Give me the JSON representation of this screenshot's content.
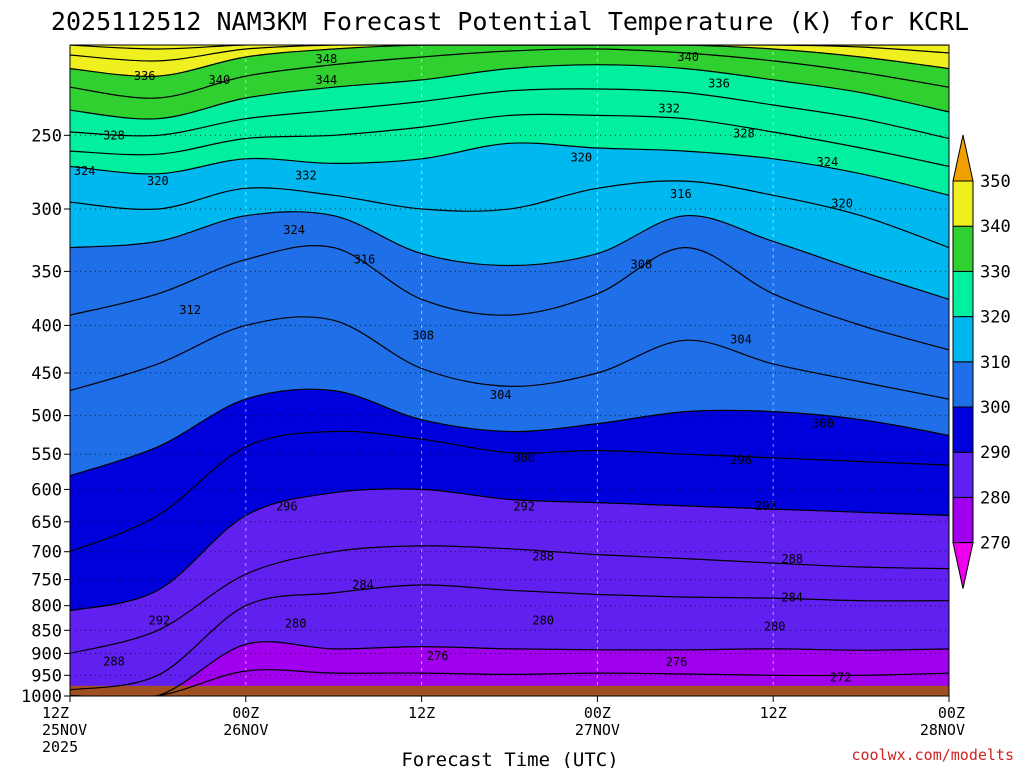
{
  "title": "2025112512 NAM3KM Forecast Potential Temperature (K) for KCRL",
  "credit": "coolwx.com/modelts",
  "chart_data": {
    "type": "heatmap",
    "title": "2025112512 NAM3KM Forecast Potential Temperature (K) for KCRL",
    "xlabel": "Forecast Time (UTC)",
    "ylabel": "",
    "x_range_hours": [
      0,
      60
    ],
    "y_range_hpa": [
      200,
      1000
    ],
    "y_scale": "log-pressure",
    "grid": true,
    "y_ticks": [
      250,
      300,
      350,
      400,
      450,
      500,
      550,
      600,
      650,
      700,
      750,
      800,
      850,
      900,
      950,
      1000
    ],
    "x_ticks": [
      {
        "hour": 0,
        "label": "12Z",
        "date": "25NOV",
        "year": "2025"
      },
      {
        "hour": 12,
        "label": "00Z",
        "date": "26NOV",
        "year": ""
      },
      {
        "hour": 24,
        "label": "12Z",
        "date": "",
        "year": ""
      },
      {
        "hour": 36,
        "label": "00Z",
        "date": "27NOV",
        "year": ""
      },
      {
        "hour": 48,
        "label": "12Z",
        "date": "",
        "year": ""
      },
      {
        "hour": 60,
        "label": "00Z",
        "date": "28NOV",
        "year": ""
      }
    ],
    "colorbar": {
      "levels": [
        270,
        280,
        290,
        300,
        310,
        320,
        330,
        340,
        350
      ],
      "colors": [
        "#ee00ee",
        "#a000ee",
        "#6020f0",
        "#0000dd",
        "#1e6fe8",
        "#00b8f0",
        "#00f0a0",
        "#30d030",
        "#f0f020",
        "#f0a000"
      ]
    },
    "surface_hpa": 975,
    "hours": [
      0,
      6,
      12,
      18,
      24,
      30,
      36,
      42,
      48,
      54,
      60
    ],
    "isentropes": [
      {
        "theta": 276,
        "p": [
          999,
          999,
          940,
          945,
          945,
          948,
          945,
          947,
          950,
          950,
          945
        ]
      },
      {
        "theta": 280,
        "p": [
          999,
          999,
          880,
          890,
          885,
          890,
          892,
          892,
          890,
          893,
          890
        ]
      },
      {
        "theta": 284,
        "p": [
          985,
          950,
          800,
          775,
          760,
          770,
          778,
          783,
          785,
          790,
          790
        ]
      },
      {
        "theta": 288,
        "p": [
          900,
          850,
          740,
          700,
          690,
          695,
          705,
          712,
          720,
          727,
          730
        ]
      },
      {
        "theta": 292,
        "p": [
          810,
          770,
          640,
          605,
          600,
          615,
          620,
          625,
          630,
          635,
          640
        ]
      },
      {
        "theta": 296,
        "p": [
          700,
          640,
          540,
          520,
          530,
          548,
          545,
          550,
          555,
          560,
          565
        ]
      },
      {
        "theta": 300,
        "p": [
          580,
          540,
          480,
          470,
          505,
          520,
          510,
          495,
          495,
          505,
          525
        ]
      },
      {
        "theta": 304,
        "p": [
          470,
          440,
          400,
          395,
          445,
          465,
          450,
          415,
          440,
          460,
          480
        ]
      },
      {
        "theta": 308,
        "p": [
          390,
          370,
          340,
          330,
          375,
          390,
          370,
          330,
          370,
          400,
          425
        ]
      },
      {
        "theta": 312,
        "p": [
          330,
          325,
          305,
          305,
          335,
          345,
          335,
          305,
          325,
          350,
          375
        ]
      },
      {
        "theta": 316,
        "p": [
          295,
          300,
          285,
          290,
          300,
          300,
          285,
          280,
          290,
          305,
          330
        ]
      },
      {
        "theta": 320,
        "p": [
          270,
          275,
          265,
          268,
          265,
          255,
          258,
          260,
          265,
          275,
          290
        ]
      },
      {
        "theta": 324,
        "p": [
          260,
          262,
          252,
          250,
          245,
          238,
          238,
          240,
          248,
          258,
          270
        ]
      },
      {
        "theta": 328,
        "p": [
          248,
          250,
          240,
          235,
          230,
          224,
          223,
          225,
          232,
          240,
          252
        ]
      },
      {
        "theta": 332,
        "p": [
          235,
          240,
          228,
          222,
          218,
          212,
          210,
          212,
          218,
          225,
          236
        ]
      },
      {
        "theta": 336,
        "p": [
          222,
          228,
          216,
          210,
          206,
          203,
          202,
          204,
          208,
          214,
          222
        ]
      },
      {
        "theta": 340,
        "p": [
          212,
          216,
          206,
          202,
          200,
          200,
          200,
          200,
          202,
          206,
          212
        ]
      },
      {
        "theta": 344,
        "p": [
          205,
          208,
          202,
          200,
          200,
          200,
          200,
          200,
          200,
          201,
          204
        ]
      },
      {
        "theta": 348,
        "p": [
          200,
          202,
          200,
          200,
          200,
          200,
          200,
          200,
          200,
          200,
          200
        ]
      }
    ],
    "contour_labels": [
      {
        "text": "348",
        "hour": 17.5,
        "p": 207
      },
      {
        "text": "344",
        "hour": 17.5,
        "p": 218
      },
      {
        "text": "340",
        "hour": 10.2,
        "p": 218
      },
      {
        "text": "336",
        "hour": 5.1,
        "p": 216
      },
      {
        "text": "340",
        "hour": 42.2,
        "p": 206
      },
      {
        "text": "336",
        "hour": 44.3,
        "p": 220
      },
      {
        "text": "332",
        "hour": 40.9,
        "p": 234
      },
      {
        "text": "332",
        "hour": 16.1,
        "p": 276
      },
      {
        "text": "328",
        "hour": 3.0,
        "p": 250
      },
      {
        "text": "328",
        "hour": 46.0,
        "p": 249
      },
      {
        "text": "324",
        "hour": 1.0,
        "p": 273
      },
      {
        "text": "324",
        "hour": 51.7,
        "p": 267
      },
      {
        "text": "324",
        "hour": 15.3,
        "p": 316
      },
      {
        "text": "320",
        "hour": 6.0,
        "p": 280
      },
      {
        "text": "320",
        "hour": 34.9,
        "p": 264
      },
      {
        "text": "320",
        "hour": 52.7,
        "p": 296
      },
      {
        "text": "316",
        "hour": 20.1,
        "p": 340
      },
      {
        "text": "316",
        "hour": 41.7,
        "p": 289
      },
      {
        "text": "312",
        "hour": 8.2,
        "p": 385
      },
      {
        "text": "308",
        "hour": 24.1,
        "p": 410
      },
      {
        "text": "308",
        "hour": 39.0,
        "p": 344
      },
      {
        "text": "304",
        "hour": 45.8,
        "p": 414
      },
      {
        "text": "304",
        "hour": 29.4,
        "p": 475
      },
      {
        "text": "300",
        "hour": 31.0,
        "p": 555
      },
      {
        "text": "300",
        "hour": 51.4,
        "p": 510
      },
      {
        "text": "296",
        "hour": 45.8,
        "p": 558
      },
      {
        "text": "296",
        "hour": 14.8,
        "p": 626
      },
      {
        "text": "292",
        "hour": 31.0,
        "p": 626
      },
      {
        "text": "292",
        "hour": 47.5,
        "p": 625
      },
      {
        "text": "292",
        "hour": 6.1,
        "p": 830
      },
      {
        "text": "288",
        "hour": 32.3,
        "p": 708
      },
      {
        "text": "288",
        "hour": 49.3,
        "p": 713
      },
      {
        "text": "288",
        "hour": 3.0,
        "p": 918
      },
      {
        "text": "284",
        "hour": 20.0,
        "p": 760
      },
      {
        "text": "284",
        "hour": 49.3,
        "p": 784
      },
      {
        "text": "280",
        "hour": 15.4,
        "p": 836
      },
      {
        "text": "280",
        "hour": 32.3,
        "p": 830
      },
      {
        "text": "280",
        "hour": 48.1,
        "p": 842
      },
      {
        "text": "276",
        "hour": 25.1,
        "p": 906
      },
      {
        "text": "276",
        "hour": 41.4,
        "p": 919
      },
      {
        "text": "272",
        "hour": 52.6,
        "p": 955
      }
    ]
  }
}
